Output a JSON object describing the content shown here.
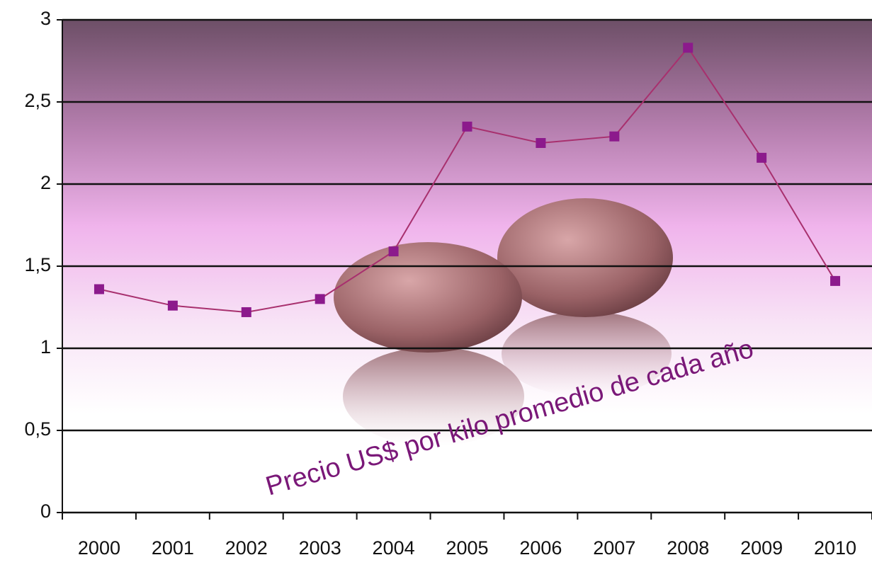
{
  "chart_data": {
    "type": "line",
    "categories": [
      "2000",
      "2001",
      "2002",
      "2003",
      "2004",
      "2005",
      "2006",
      "2007",
      "2008",
      "2009",
      "2010"
    ],
    "values": [
      1.36,
      1.26,
      1.22,
      1.3,
      1.59,
      2.35,
      2.25,
      2.29,
      2.83,
      2.16,
      1.41
    ],
    "color": "#a8306e",
    "marker_color": "#8c1a8c",
    "ylim": [
      0,
      3
    ],
    "yticks": [
      0,
      {
        "value": 0.5,
        "label": "0,5"
      },
      1,
      {
        "value": 1.5,
        "label": "1,5"
      },
      2,
      {
        "value": 2.5,
        "label": "2,5"
      },
      3
    ],
    "grid": true,
    "annotation": "Precio US$ por kilo promedio de cada año"
  }
}
